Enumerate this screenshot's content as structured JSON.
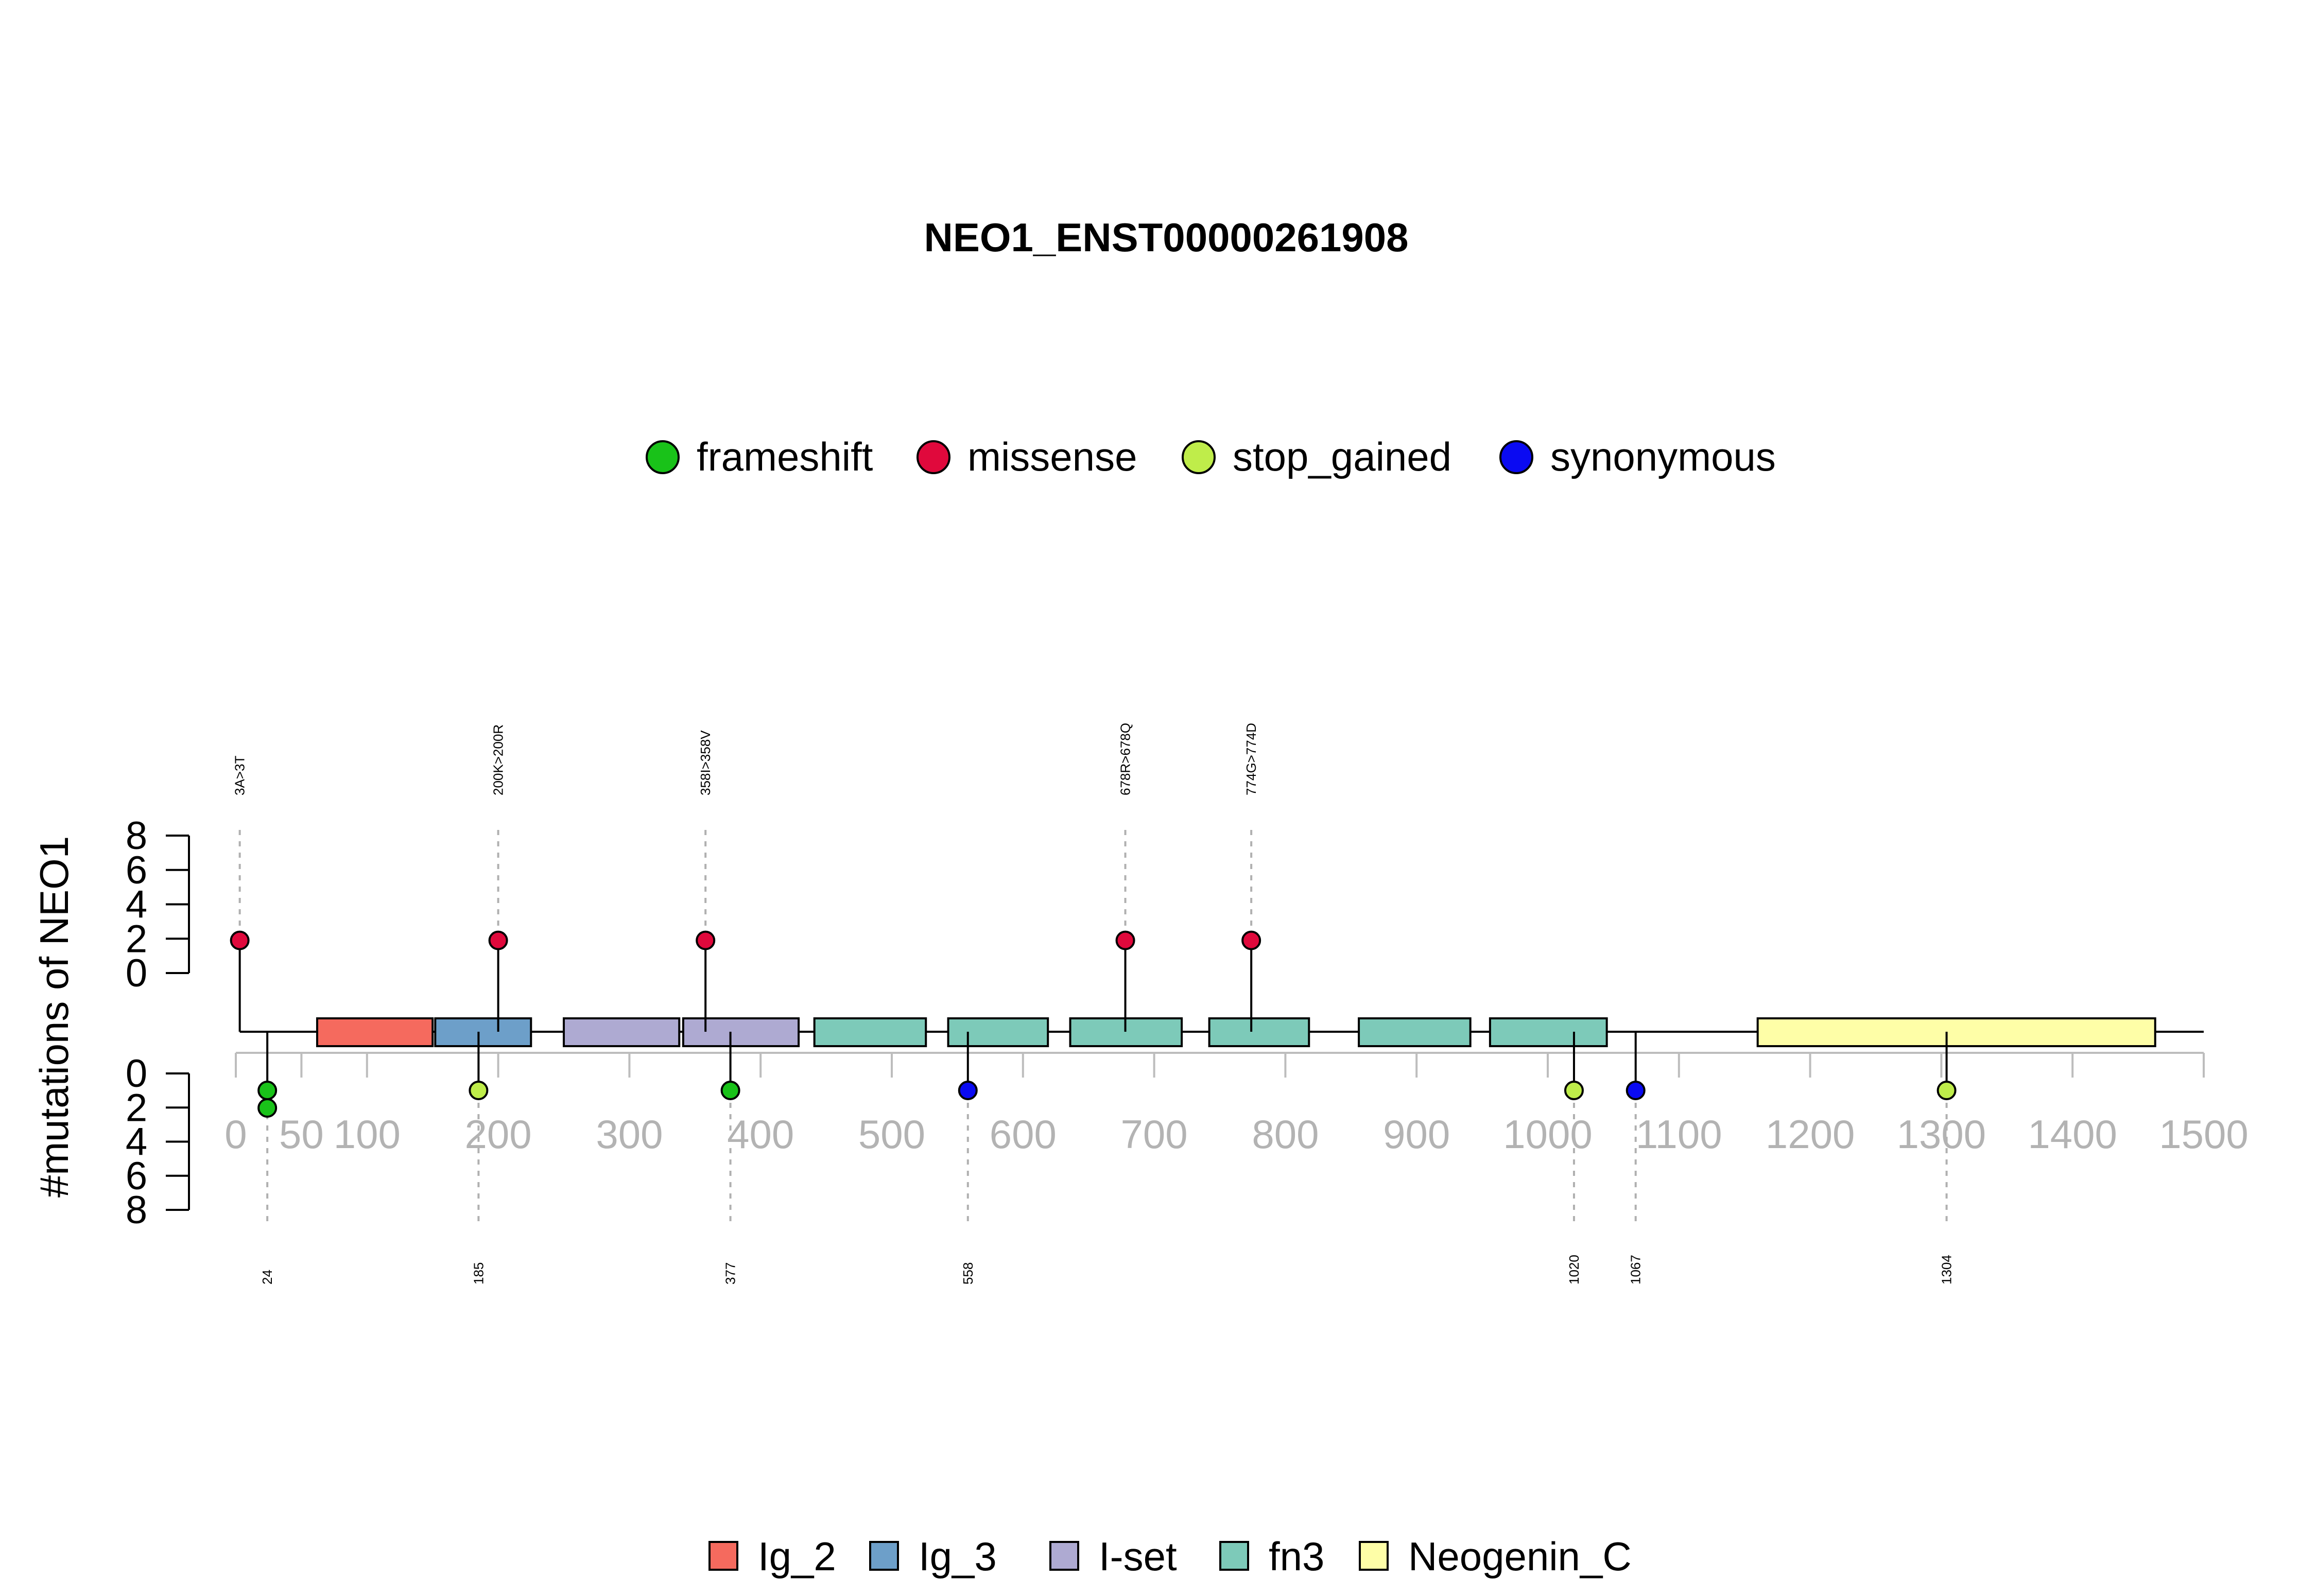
{
  "chart_data": {
    "type": "lollipop",
    "title": "NEO1_ENST00000261908",
    "ylabel": "#mutations of NEO1",
    "xlim": [
      0,
      1500
    ],
    "x_ticks": [
      0,
      50,
      100,
      200,
      300,
      400,
      500,
      600,
      700,
      800,
      900,
      1000,
      1100,
      1200,
      1300,
      1400,
      1500
    ],
    "y_ticks": [
      0,
      2,
      4,
      6,
      8
    ],
    "y_range": [
      0,
      8
    ],
    "mutation_legend": [
      {
        "label": "frameshift",
        "color": "#19c219"
      },
      {
        "label": "missense",
        "color": "#e0093c"
      },
      {
        "label": "stop_gained",
        "color": "#bfed4a"
      },
      {
        "label": "synonymous",
        "color": "#0a0af2"
      }
    ],
    "domain_legend": [
      {
        "label": "Ig_2",
        "color": "#f56a5e"
      },
      {
        "label": "Ig_3",
        "color": "#6d9fc9"
      },
      {
        "label": "I-set",
        "color": "#aeaad2"
      },
      {
        "label": "fn3",
        "color": "#7dcab9"
      },
      {
        "label": "Neogenin_C",
        "color": "#fefea7"
      }
    ],
    "domains": [
      {
        "name": "Ig_2",
        "start": 62,
        "end": 150
      },
      {
        "name": "Ig_3",
        "start": 152,
        "end": 225
      },
      {
        "name": "I-set",
        "start": 250,
        "end": 338
      },
      {
        "name": "I-set",
        "start": 341,
        "end": 429
      },
      {
        "name": "fn3",
        "start": 441,
        "end": 526
      },
      {
        "name": "fn3",
        "start": 543,
        "end": 619
      },
      {
        "name": "fn3",
        "start": 636,
        "end": 721
      },
      {
        "name": "fn3",
        "start": 742,
        "end": 818
      },
      {
        "name": "fn3",
        "start": 856,
        "end": 941
      },
      {
        "name": "fn3",
        "start": 956,
        "end": 1045
      },
      {
        "name": "Neogenin_C",
        "start": 1160,
        "end": 1463
      }
    ],
    "mutations_top": [
      {
        "position": 3,
        "label": "3A>3T",
        "type": "missense",
        "count": 1
      },
      {
        "position": 200,
        "label": "200K>200R",
        "type": "missense",
        "count": 1
      },
      {
        "position": 358,
        "label": "358I>358V",
        "type": "missense",
        "count": 1
      },
      {
        "position": 678,
        "label": "678R>678Q",
        "type": "missense",
        "count": 1
      },
      {
        "position": 774,
        "label": "774G>774D",
        "type": "missense",
        "count": 1
      }
    ],
    "mutations_bottom": [
      {
        "position": 24,
        "label": "24",
        "type": "frameshift",
        "count": 2
      },
      {
        "position": 185,
        "label": "185",
        "type": "stop_gained",
        "count": 1
      },
      {
        "position": 377,
        "label": "377",
        "type": "frameshift",
        "count": 1
      },
      {
        "position": 558,
        "label": "558",
        "type": "synonymous",
        "count": 1
      },
      {
        "position": 1020,
        "label": "1020",
        "type": "stop_gained",
        "count": 1
      },
      {
        "position": 1067,
        "label": "1067",
        "type": "synonymous",
        "count": 1
      },
      {
        "position": 1304,
        "label": "1304",
        "type": "stop_gained",
        "count": 1
      }
    ]
  }
}
